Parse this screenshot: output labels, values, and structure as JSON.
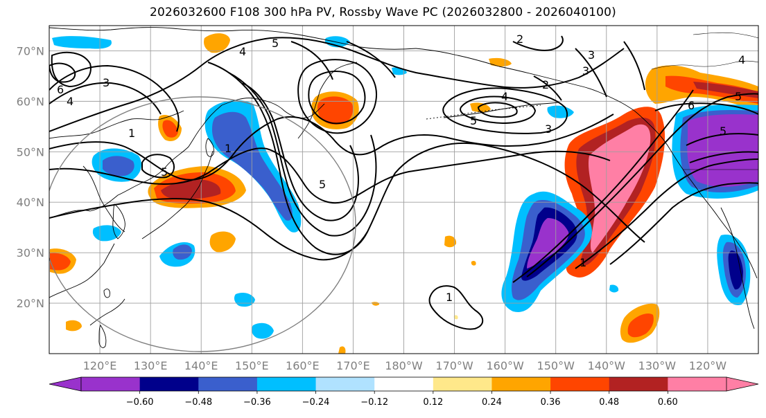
{
  "title": "2026032600 F108 300 hPa PV, Rossby Wave PC (2026032800 - 2026040100)",
  "map": {
    "extent": {
      "lon_min": 110,
      "lon_max": 250,
      "lat_min": 10,
      "lat_max": 75
    },
    "grid_lons": [
      120,
      130,
      140,
      150,
      160,
      170,
      180,
      190,
      200,
      210,
      220,
      230,
      240
    ],
    "grid_lats": [
      20,
      30,
      40,
      50,
      60,
      70
    ],
    "lat_labels": [
      "20°N",
      "30°N",
      "40°N",
      "50°N",
      "60°N",
      "70°N"
    ],
    "lon_labels": [
      "120°E",
      "130°E",
      "140°E",
      "150°E",
      "160°E",
      "170°E",
      "180°W",
      "170°W",
      "160°W",
      "150°W",
      "140°W",
      "130°W",
      "120°W"
    ],
    "circle": {
      "center_lon": 140,
      "center_lat": 40,
      "radius_deg_lat": 30
    }
  },
  "pv_contours": [
    {
      "label": "1"
    },
    {
      "label": "2"
    },
    {
      "label": "3"
    },
    {
      "label": "4"
    },
    {
      "label": "5"
    },
    {
      "label": "6"
    }
  ],
  "colorbar": {
    "ticks": [
      "−0.60",
      "−0.48",
      "−0.36",
      "−0.24",
      "−0.12",
      "0.12",
      "0.24",
      "0.36",
      "0.48",
      "0.60"
    ],
    "colors": [
      "#9932cc",
      "#00008b",
      "#3a5fcd",
      "#00bfff",
      "#b0e2ff",
      "#ffffff",
      "#ffe88a",
      "#ffa500",
      "#ff4500",
      "#b22222",
      "#ff7fa5"
    ]
  }
}
